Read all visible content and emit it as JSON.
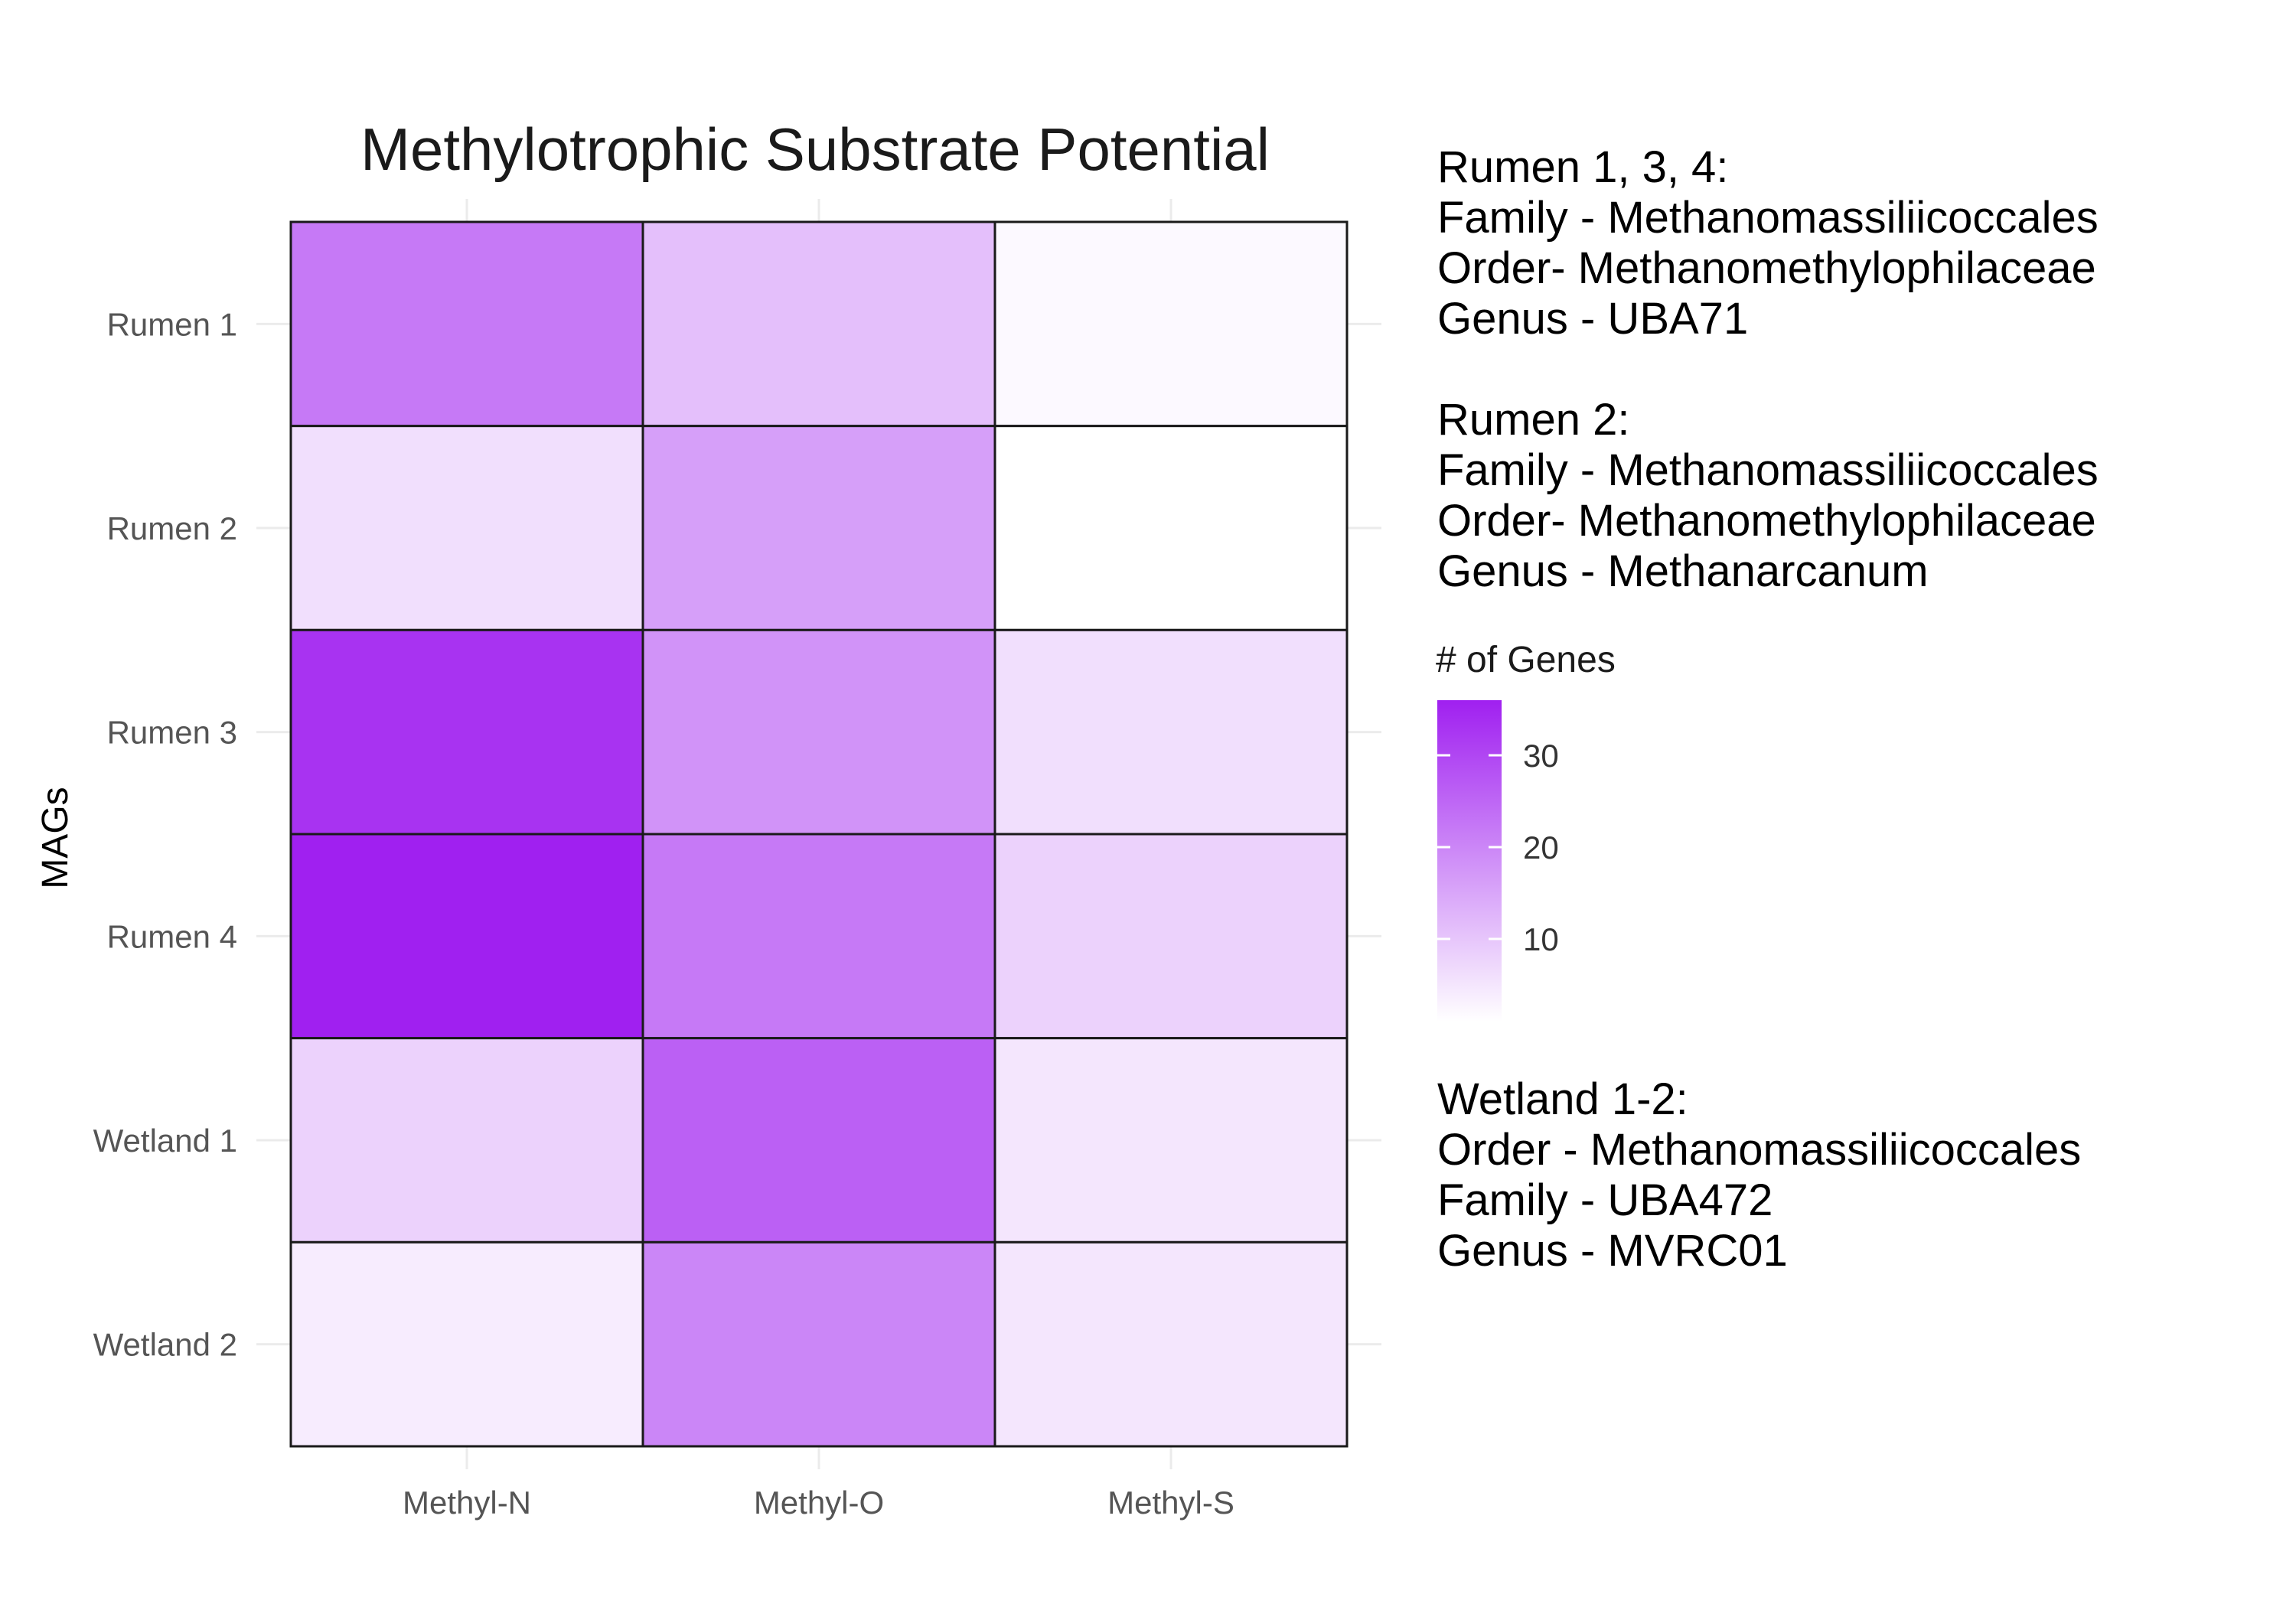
{
  "chart_data": {
    "type": "heatmap",
    "title": "Methylotrophic Substrate Potential",
    "ylabel": "MAGs",
    "xlabel": "",
    "x_categories": [
      "Methyl-N",
      "Methyl-O",
      "Methyl-S"
    ],
    "y_categories": [
      "Rumen 1",
      "Rumen 2",
      "Rumen 3",
      "Rumen 4",
      "Wetland 1",
      "Wetland 2"
    ],
    "values": [
      [
        22,
        11,
        2
      ],
      [
        6,
        16,
        1
      ],
      [
        33,
        18,
        6
      ],
      [
        36,
        22,
        8
      ],
      [
        8,
        26,
        5
      ],
      [
        4,
        20,
        5
      ]
    ],
    "legend": {
      "title": "# of Genes",
      "ticks": [
        10,
        20,
        30
      ],
      "range": [
        1,
        36
      ],
      "low_color": "#ffffff",
      "high_color": "#a020f0",
      "placement": "right"
    },
    "grid": true
  },
  "notes": [
    {
      "lines": [
        "Rumen 1, 3, 4:",
        "Family - Methanomassiliicoccales",
        "Order- Methanomethylophilaceae",
        "Genus - UBA71"
      ]
    },
    {
      "lines": [
        "Rumen 2:",
        "Family - Methanomassiliicoccales",
        "Order- Methanomethylophilaceae",
        "Genus - Methanarcanum"
      ]
    },
    {
      "lines": [
        "Wetland 1-2:",
        "Order - Methanomassiliicoccales",
        "Family - UBA472",
        "Genus - MVRC01"
      ]
    }
  ]
}
